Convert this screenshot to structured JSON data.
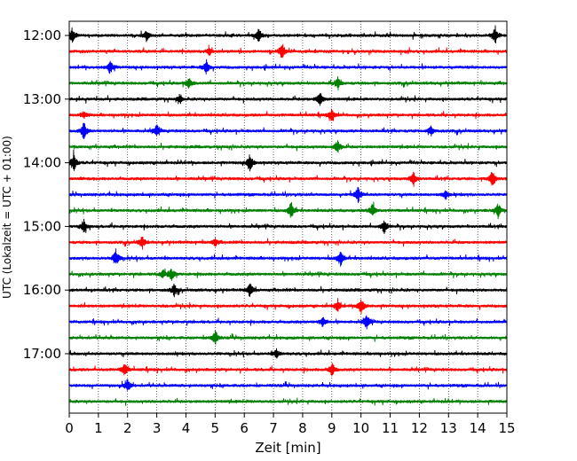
{
  "chart_data": {
    "type": "line",
    "title": "",
    "xlabel": "Zeit  [min]",
    "ylabel": "UTC (Lokalzeit = UTC + 01:00)",
    "xlim": [
      0,
      15
    ],
    "x_ticks": [
      "0",
      "1",
      "2",
      "3",
      "4",
      "5",
      "6",
      "7",
      "8",
      "9",
      "10",
      "11",
      "12",
      "13",
      "14",
      "15"
    ],
    "y_ticks": [
      {
        "value": "12:00",
        "trace_index": 0
      },
      {
        "value": "13:00",
        "trace_index": 4
      },
      {
        "value": "14:00",
        "trace_index": 8
      },
      {
        "value": "15:00",
        "trace_index": 12
      },
      {
        "value": "16:00",
        "trace_index": 16
      },
      {
        "value": "17:00",
        "trace_index": 20
      }
    ],
    "trace_minutes": 15,
    "vertical_grid": "dotted",
    "color_cycle": [
      "#000000",
      "#ff0000",
      "#0000ff",
      "#008000"
    ],
    "traces": [
      {
        "start": "12:00",
        "color": "#000000",
        "events_min": [
          0.1,
          2.65,
          6.5,
          14.6
        ]
      },
      {
        "start": "12:15",
        "color": "#ff0000",
        "events_min": [
          4.8,
          7.3
        ]
      },
      {
        "start": "12:30",
        "color": "#0000ff",
        "events_min": [
          1.4,
          4.7
        ]
      },
      {
        "start": "12:45",
        "color": "#008000",
        "events_min": [
          4.1,
          9.2
        ]
      },
      {
        "start": "13:00",
        "color": "#000000",
        "events_min": [
          3.8,
          8.6
        ]
      },
      {
        "start": "13:15",
        "color": "#ff0000",
        "events_min": [
          0.5,
          9.0
        ]
      },
      {
        "start": "13:30",
        "color": "#0000ff",
        "events_min": [
          0.5,
          3.0,
          12.4
        ]
      },
      {
        "start": "13:45",
        "color": "#008000",
        "events_min": [
          9.2
        ]
      },
      {
        "start": "14:00",
        "color": "#000000",
        "events_min": [
          0.15,
          6.2
        ]
      },
      {
        "start": "14:15",
        "color": "#ff0000",
        "events_min": [
          11.8,
          14.5
        ]
      },
      {
        "start": "14:30",
        "color": "#0000ff",
        "events_min": [
          9.9,
          12.9
        ]
      },
      {
        "start": "14:45",
        "color": "#008000",
        "events_min": [
          7.6,
          10.4,
          14.7
        ]
      },
      {
        "start": "15:00",
        "color": "#000000",
        "events_min": [
          0.5,
          10.8
        ]
      },
      {
        "start": "15:15",
        "color": "#ff0000",
        "events_min": [
          2.5,
          5.0
        ]
      },
      {
        "start": "15:30",
        "color": "#0000ff",
        "events_min": [
          1.6,
          9.3
        ]
      },
      {
        "start": "15:45",
        "color": "#008000",
        "events_min": [
          3.2,
          3.5
        ]
      },
      {
        "start": "16:00",
        "color": "#000000",
        "events_min": [
          3.6,
          6.2
        ]
      },
      {
        "start": "16:15",
        "color": "#ff0000",
        "events_min": [
          9.2,
          10.0
        ]
      },
      {
        "start": "16:30",
        "color": "#0000ff",
        "events_min": [
          8.7,
          10.2
        ]
      },
      {
        "start": "16:45",
        "color": "#008000",
        "events_min": [
          5.0
        ]
      },
      {
        "start": "17:00",
        "color": "#000000",
        "events_min": [
          7.1
        ]
      },
      {
        "start": "17:15",
        "color": "#ff0000",
        "events_min": [
          1.9,
          9.0
        ]
      },
      {
        "start": "17:30",
        "color": "#0000ff",
        "events_min": [
          2.0
        ]
      },
      {
        "start": "17:45",
        "color": "#008000",
        "events_min": []
      }
    ]
  }
}
